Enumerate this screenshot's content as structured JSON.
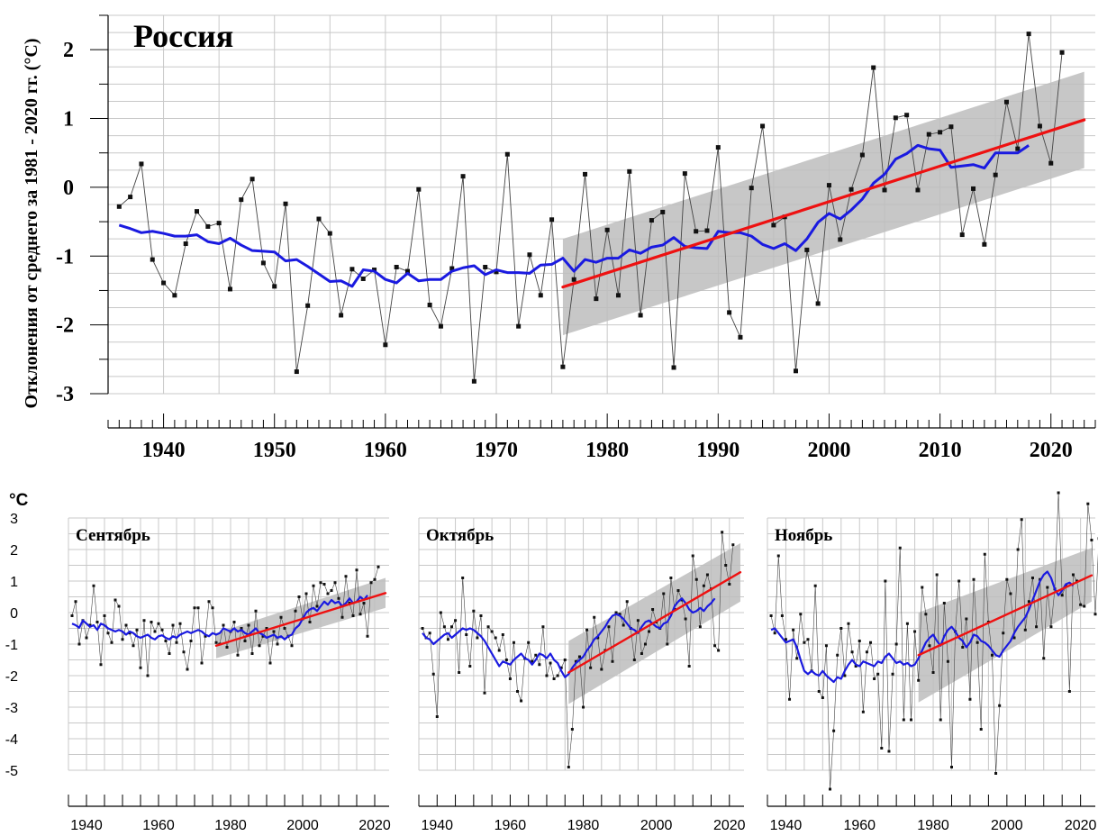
{
  "colors": {
    "trend": "#ee1111",
    "smooth": "#1a1ae0",
    "band": "#bdbdbd",
    "series": "#444444",
    "grid": "#c8c8c8"
  },
  "chart_data": [
    {
      "type": "line",
      "title": "Россия",
      "ylabel": "Отклонения от среднего за 1981 - 2020 гг. (°C)",
      "xlim": [
        1935,
        2024
      ],
      "ylim": [
        -3,
        2.5
      ],
      "xticks": [
        1940,
        1950,
        1960,
        1970,
        1980,
        1990,
        2000,
        2010,
        2020
      ],
      "yticks": [
        -3,
        -2,
        -1,
        0,
        1,
        2
      ],
      "grid": true,
      "x_start": 1936,
      "series": [
        {
          "values": [
            -0.28,
            -0.14,
            0.34,
            -1.05,
            -1.39,
            -1.57,
            -0.82,
            -0.35,
            -0.57,
            -0.52,
            -1.48,
            -0.18,
            0.12,
            -1.1,
            -1.44,
            -0.24,
            -2.68,
            -1.72,
            -0.46,
            -0.67,
            -1.86,
            -1.19,
            -1.33,
            -1.2,
            -2.29,
            -1.16,
            -1.22,
            -0.03,
            -1.71,
            -2.02,
            -1.18,
            0.16,
            -2.82,
            -1.16,
            -1.23,
            0.48,
            -2.02,
            -0.98,
            -1.57,
            -0.47,
            -2.61,
            -1.34,
            0.19,
            -1.62,
            -0.62,
            -1.57,
            0.23,
            -1.86,
            -0.48,
            -0.36,
            -2.62,
            0.2,
            -0.64,
            -0.63,
            0.58,
            -1.82,
            -2.18,
            -0.01,
            0.89,
            -0.55,
            -0.43,
            -2.67,
            -0.91,
            -1.69,
            0.03,
            -0.76,
            -0.03,
            0.47,
            1.74,
            -0.04,
            1.01,
            1.05,
            -0.04,
            0.77,
            0.8,
            0.88,
            -0.69,
            -0.02,
            -0.83,
            0.18,
            1.24,
            0.56,
            2.23,
            0.89,
            0.35,
            1.96
          ]
        },
        {
          "values": [
            -0.55,
            -0.6,
            -0.66,
            -0.64,
            -0.67,
            -0.71,
            -0.71,
            -0.69,
            -0.79,
            -0.82,
            -0.74,
            -0.84,
            -0.92,
            -0.93,
            -0.94,
            -1.07,
            -1.05,
            -1.15,
            -1.26,
            -1.37,
            -1.36,
            -1.44,
            -1.2,
            -1.22,
            -1.34,
            -1.39,
            -1.25,
            -1.36,
            -1.34,
            -1.34,
            -1.22,
            -1.17,
            -1.14,
            -1.27,
            -1.2,
            -1.24,
            -1.24,
            -1.25,
            -1.13,
            -1.12,
            -1.03,
            -1.22,
            -1.05,
            -1.09,
            -1.03,
            -1.03,
            -0.91,
            -0.96,
            -0.87,
            -0.84,
            -0.73,
            -0.86,
            -0.88,
            -0.89,
            -0.64,
            -0.66,
            -0.66,
            -0.71,
            -0.83,
            -0.89,
            -0.82,
            -0.92,
            -0.75,
            -0.51,
            -0.38,
            -0.46,
            -0.33,
            -0.17,
            0.06,
            0.19,
            0.41,
            0.49,
            0.61,
            0.56,
            0.54,
            0.29,
            0.31,
            0.33,
            0.28,
            0.5,
            0.5,
            0.5,
            0.61
          ]
        },
        {
          "values": [
            -1.45,
            0.98
          ],
          "x": [
            1976,
            2023
          ]
        }
      ],
      "band": {
        "x": [
          1976,
          2023
        ],
        "lower": [
          -2.15,
          0.28
        ],
        "upper": [
          -0.75,
          1.68
        ]
      }
    },
    {
      "type": "line",
      "title": "Сентябрь",
      "unit_label": "°C",
      "xlim": [
        1935,
        2024
      ],
      "ylim": [
        -5,
        3
      ],
      "xticks": [
        1940,
        1960,
        1980,
        2000,
        2020
      ],
      "yticks": [
        -5,
        -4,
        -3,
        -2,
        -1,
        0,
        1,
        2,
        3
      ],
      "grid": true,
      "x_start": 1936,
      "series": [
        {
          "values": [
            -0.1,
            0.35,
            -1.0,
            -0.25,
            -0.8,
            -0.4,
            0.85,
            -0.3,
            -1.65,
            -0.1,
            -0.65,
            -0.95,
            0.4,
            0.2,
            -0.85,
            -0.4,
            -0.65,
            -1.05,
            -0.55,
            -1.75,
            -0.25,
            -2.0,
            -0.3,
            -0.6,
            -0.35,
            -0.55,
            -0.9,
            -1.3,
            -0.4,
            -0.95,
            -0.35,
            -1.25,
            -1.8,
            -0.9,
            0.15,
            0.15,
            -1.6,
            -0.75,
            0.35,
            0.15,
            -0.95,
            -1.0,
            -0.4,
            -1.1,
            -0.6,
            -0.3,
            -1.35,
            -0.5,
            -0.9,
            -0.4,
            -1.3,
            0.05,
            -1.05,
            -0.75,
            -0.5,
            -1.6,
            -0.6,
            -1.0,
            -0.15,
            -0.5,
            -0.75,
            -1.05,
            0.05,
            0.5,
            -0.2,
            0.6,
            -0.3,
            0.85,
            0.2,
            0.95,
            0.9,
            0.6,
            0.7,
            0.95,
            0.45,
            -0.15,
            1.15,
            0.3,
            -0.1,
            1.35,
            -0.05,
            0.3,
            -0.75,
            0.95,
            1.05,
            1.45
          ]
        },
        {
          "values": [
            -0.35,
            -0.4,
            -0.48,
            -0.25,
            -0.35,
            -0.45,
            -0.4,
            -0.55,
            -0.35,
            -0.4,
            -0.5,
            -0.55,
            -0.6,
            -0.55,
            -0.6,
            -0.7,
            -0.6,
            -0.65,
            -0.75,
            -0.8,
            -0.75,
            -0.7,
            -0.8,
            -0.85,
            -0.75,
            -0.72,
            -0.8,
            -0.85,
            -0.75,
            -0.8,
            -0.7,
            -0.65,
            -0.6,
            -0.65,
            -0.6,
            -0.55,
            -0.6,
            -0.7,
            -0.75,
            -0.65,
            -0.7,
            -0.65,
            -0.5,
            -0.55,
            -0.6,
            -0.5,
            -0.6,
            -0.55,
            -0.65,
            -0.7,
            -0.6,
            -0.5,
            -0.65,
            -0.7,
            -0.8,
            -0.75,
            -0.7,
            -0.8,
            -0.75,
            -0.85,
            -0.75,
            -0.7,
            -0.5,
            -0.4,
            -0.2,
            0.0,
            0.1,
            0.15,
            0.05,
            0.2,
            0.35,
            0.25,
            0.4,
            0.3,
            0.35,
            0.2,
            0.3,
            0.45,
            0.3,
            0.35,
            0.5,
            0.4,
            0.55
          ]
        },
        {
          "values": [
            -1.05,
            0.62
          ],
          "x": [
            1976,
            2023
          ]
        }
      ],
      "band": {
        "x": [
          1976,
          2023
        ],
        "lower": [
          -1.45,
          0.15
        ],
        "upper": [
          -0.65,
          1.1
        ]
      }
    },
    {
      "type": "line",
      "title": "Октябрь",
      "xlim": [
        1935,
        2024
      ],
      "ylim": [
        -5,
        3
      ],
      "xticks": [
        1940,
        1960,
        1980,
        2000,
        2020
      ],
      "yticks": [
        -5,
        -4,
        -3,
        -2,
        -1,
        0,
        1,
        2,
        3
      ],
      "grid": true,
      "x_start": 1936,
      "series": [
        {
          "values": [
            -0.5,
            -0.8,
            -0.65,
            -1.95,
            -3.3,
            0.0,
            -0.45,
            -0.85,
            -0.45,
            -0.25,
            -1.9,
            1.1,
            -0.7,
            -1.7,
            0.05,
            -0.8,
            -0.1,
            -2.55,
            -0.45,
            -0.6,
            -0.8,
            -1.2,
            -0.7,
            -1.5,
            -2.1,
            -0.95,
            -2.5,
            -2.8,
            -1.45,
            -0.95,
            -1.55,
            -1.35,
            -1.65,
            -0.45,
            -2.0,
            -1.6,
            -2.1,
            -2.0,
            -1.75,
            -1.5,
            -4.9,
            -3.7,
            -1.55,
            -1.4,
            -3.0,
            -0.55,
            -1.75,
            -0.15,
            -0.8,
            -1.8,
            -1.2,
            -0.45,
            -1.55,
            0.0,
            -0.05,
            -0.4,
            0.35,
            -0.5,
            -1.5,
            -0.25,
            -1.3,
            -1.0,
            -0.6,
            0.1,
            -0.3,
            -0.5,
            0.6,
            -1.0,
            1.1,
            0.1,
            0.7,
            0.4,
            -0.2,
            -1.7,
            1.8,
            1.05,
            -0.45,
            0.85,
            1.2,
            0.75,
            -1.05,
            -1.2,
            2.55,
            1.5,
            0.9,
            2.15
          ]
        },
        {
          "values": [
            -0.65,
            -0.8,
            -0.85,
            -1.0,
            -0.9,
            -0.8,
            -0.7,
            -0.65,
            -0.8,
            -0.7,
            -0.6,
            -0.5,
            -0.55,
            -0.5,
            -0.55,
            -0.65,
            -0.75,
            -0.9,
            -1.1,
            -1.3,
            -1.5,
            -1.7,
            -1.55,
            -1.6,
            -1.65,
            -1.5,
            -1.4,
            -1.3,
            -1.45,
            -1.5,
            -1.65,
            -1.5,
            -1.3,
            -1.35,
            -1.45,
            -1.3,
            -1.5,
            -1.6,
            -1.85,
            -2.05,
            -1.95,
            -1.75,
            -1.6,
            -1.5,
            -1.4,
            -1.2,
            -1.05,
            -0.85,
            -0.75,
            -0.6,
            -0.45,
            -0.25,
            -0.1,
            -0.05,
            -0.1,
            -0.2,
            -0.35,
            -0.5,
            -0.55,
            -0.65,
            -0.45,
            -0.3,
            -0.25,
            -0.35,
            -0.45,
            -0.5,
            -0.35,
            -0.3,
            -0.1,
            0.2,
            0.35,
            0.45,
            0.3,
            0.1,
            0.0,
            0.05,
            0.15,
            0.05,
            0.2,
            0.3,
            0.45
          ]
        },
        {
          "values": [
            -1.9,
            1.28
          ],
          "x": [
            1976,
            2023
          ]
        }
      ],
      "band": {
        "x": [
          1976,
          2023
        ],
        "lower": [
          -2.9,
          0.35
        ],
        "upper": [
          -0.9,
          2.2
        ]
      }
    },
    {
      "type": "line",
      "title": "Ноябрь",
      "xlim": [
        1935,
        2024
      ],
      "ylim": [
        -5,
        3
      ],
      "xticks": [
        1940,
        1960,
        1980,
        2000,
        2020
      ],
      "yticks": [
        -5,
        -4,
        -3,
        -2,
        -1,
        0,
        1,
        2,
        3
      ],
      "grid": true,
      "x_start": 1936,
      "series": [
        {
          "values": [
            -0.1,
            -0.65,
            1.8,
            -0.1,
            -0.85,
            -2.75,
            -0.55,
            -1.45,
            -0.05,
            -0.95,
            -0.85,
            -1.85,
            0.85,
            -2.5,
            -2.7,
            -1.05,
            -5.6,
            -3.75,
            -1.35,
            -0.5,
            -2.0,
            -0.35,
            -1.25,
            -1.7,
            -0.9,
            -3.15,
            -1.25,
            -0.95,
            -2.1,
            -1.95,
            -4.3,
            1.0,
            -4.4,
            -1.95,
            -1.0,
            2.05,
            -3.4,
            -0.35,
            -3.4,
            -0.6,
            -2.15,
            0.8,
            -0.05,
            -1.05,
            -1.9,
            1.2,
            -3.4,
            0.3,
            -1.55,
            -4.9,
            -0.6,
            1.0,
            -1.1,
            -0.2,
            -2.75,
            1.05,
            -0.95,
            -3.7,
            1.85,
            -0.3,
            -1.35,
            -5.1,
            -2.95,
            -0.65,
            1.05,
            0.6,
            -0.8,
            2.0,
            2.95,
            -0.55,
            0.35,
            1.1,
            -0.45,
            1.05,
            -1.45,
            0.8,
            -0.45,
            0.75,
            3.8,
            0.55,
            0.85,
            -2.5,
            1.2,
            1.0,
            0.25,
            0.2,
            3.45,
            2.3,
            -0.05,
            2.35
          ]
        },
        {
          "values": [
            -0.55,
            -0.5,
            -0.65,
            -0.8,
            -0.95,
            -0.9,
            -0.85,
            -1.1,
            -1.5,
            -1.85,
            -1.95,
            -1.85,
            -1.95,
            -2.0,
            -1.85,
            -2.0,
            -2.1,
            -2.2,
            -2.05,
            -2.1,
            -1.85,
            -1.65,
            -1.5,
            -1.65,
            -1.7,
            -1.55,
            -1.6,
            -1.65,
            -1.7,
            -1.55,
            -1.6,
            -1.4,
            -1.3,
            -1.45,
            -1.6,
            -1.55,
            -1.65,
            -1.6,
            -1.7,
            -1.65,
            -1.45,
            -1.2,
            -0.95,
            -0.8,
            -0.7,
            -0.9,
            -1.05,
            -0.75,
            -0.55,
            -0.45,
            -0.6,
            -0.8,
            -0.9,
            -1.1,
            -0.95,
            -0.7,
            -0.75,
            -0.9,
            -0.95,
            -1.05,
            -1.2,
            -1.35,
            -1.4,
            -1.2,
            -1.05,
            -0.9,
            -0.65,
            -0.45,
            -0.3,
            -0.15,
            0.1,
            0.4,
            0.7,
            1.0,
            1.2,
            1.3,
            1.1,
            0.75,
            0.55,
            0.7,
            0.9,
            0.95,
            0.85
          ]
        },
        {
          "values": [
            -1.35,
            1.18
          ],
          "x": [
            1976,
            2023
          ]
        }
      ],
      "band": {
        "x": [
          1976,
          2023
        ],
        "lower": [
          -2.85,
          0.35
        ],
        "upper": [
          0.0,
          2.05
        ]
      }
    }
  ]
}
